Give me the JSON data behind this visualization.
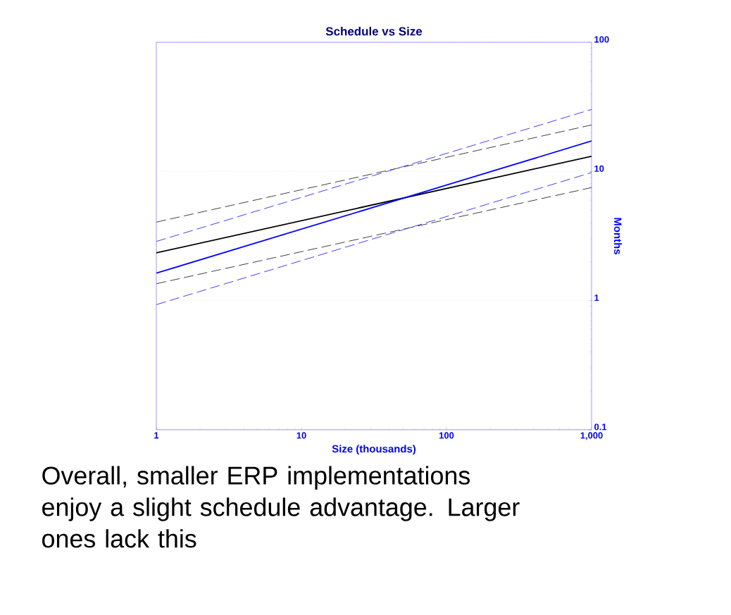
{
  "chart_data": {
    "type": "line",
    "title": "Schedule vs Size",
    "xlabel": "Size (thousands)",
    "ylabel": "Months",
    "log": "xy",
    "xlim": [
      1,
      1000
    ],
    "ylim": [
      0.1,
      100
    ],
    "xticks": [
      1,
      10,
      100,
      {
        "value": 1000,
        "label": "1,000"
      }
    ],
    "yticks": [
      0.1,
      1,
      10,
      100
    ],
    "grid": "y",
    "x": [
      1,
      1000
    ],
    "series": [
      {
        "color": "#404040",
        "line_style": "dashed",
        "values": [
          4.05,
          22.9
        ]
      },
      {
        "color": "#000000",
        "line_style": "solid",
        "values": [
          2.34,
          13.1
        ]
      },
      {
        "color": "#404040",
        "line_style": "dashed",
        "values": [
          1.35,
          7.5
        ]
      },
      {
        "color": "#4040ff",
        "line_style": "dashed",
        "values": [
          2.87,
          30.2
        ]
      },
      {
        "color": "#0000ff",
        "line_style": "solid",
        "values": [
          1.63,
          17.2
        ]
      },
      {
        "color": "#4040ff",
        "line_style": "dashed",
        "values": [
          0.93,
          9.8
        ]
      }
    ],
    "annotations": [
      "Overall, smaller ERP implementations enjoy a slight schedule advantage.  Larger ones lack this"
    ]
  }
}
